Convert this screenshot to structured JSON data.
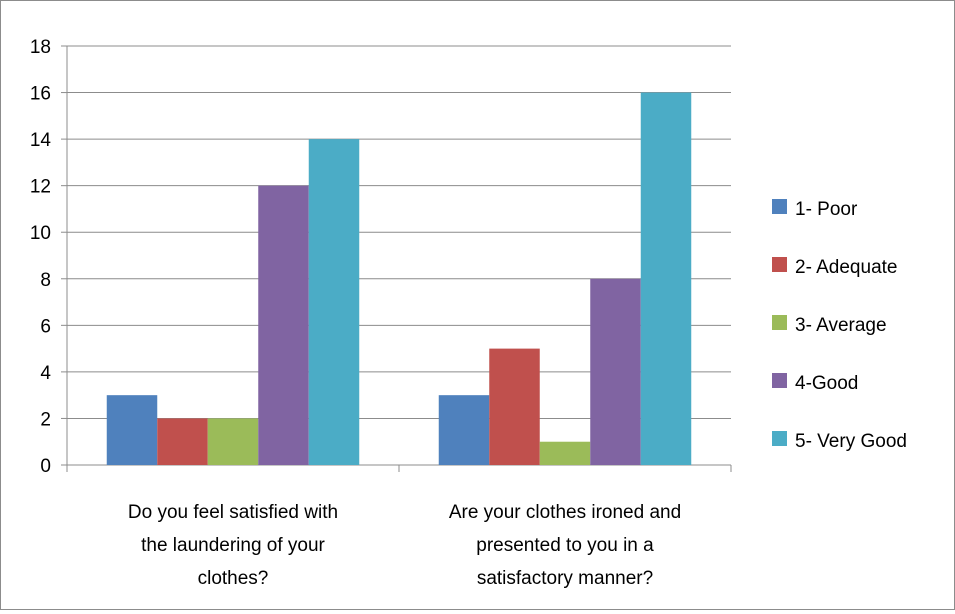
{
  "chart_data": {
    "type": "bar",
    "categories": [
      [
        "Do  you feel satisfied with",
        "the laundering of your",
        "clothes?"
      ],
      [
        "Are your clothes ironed and",
        "presented to you in a",
        "satisfactory manner?"
      ]
    ],
    "series": [
      {
        "name": "1- Poor",
        "color": "#4f81bd",
        "values": [
          3,
          3
        ]
      },
      {
        "name": "2- Adequate",
        "color": "#c0504d",
        "values": [
          2,
          5
        ]
      },
      {
        "name": "3- Average",
        "color": "#9bbb59",
        "values": [
          2,
          1
        ]
      },
      {
        "name": "4-Good",
        "color": "#8064a2",
        "values": [
          12,
          8
        ]
      },
      {
        "name": "5- Very Good",
        "color": "#4bacc6",
        "values": [
          14,
          16
        ]
      }
    ],
    "ylim": [
      0,
      18
    ],
    "yticks": [
      "0",
      "2",
      "4",
      "6",
      "8",
      "10",
      "12",
      "14",
      "16",
      "18"
    ],
    "grid": true,
    "legend": "right",
    "title": "",
    "xlabel": "",
    "ylabel": ""
  }
}
